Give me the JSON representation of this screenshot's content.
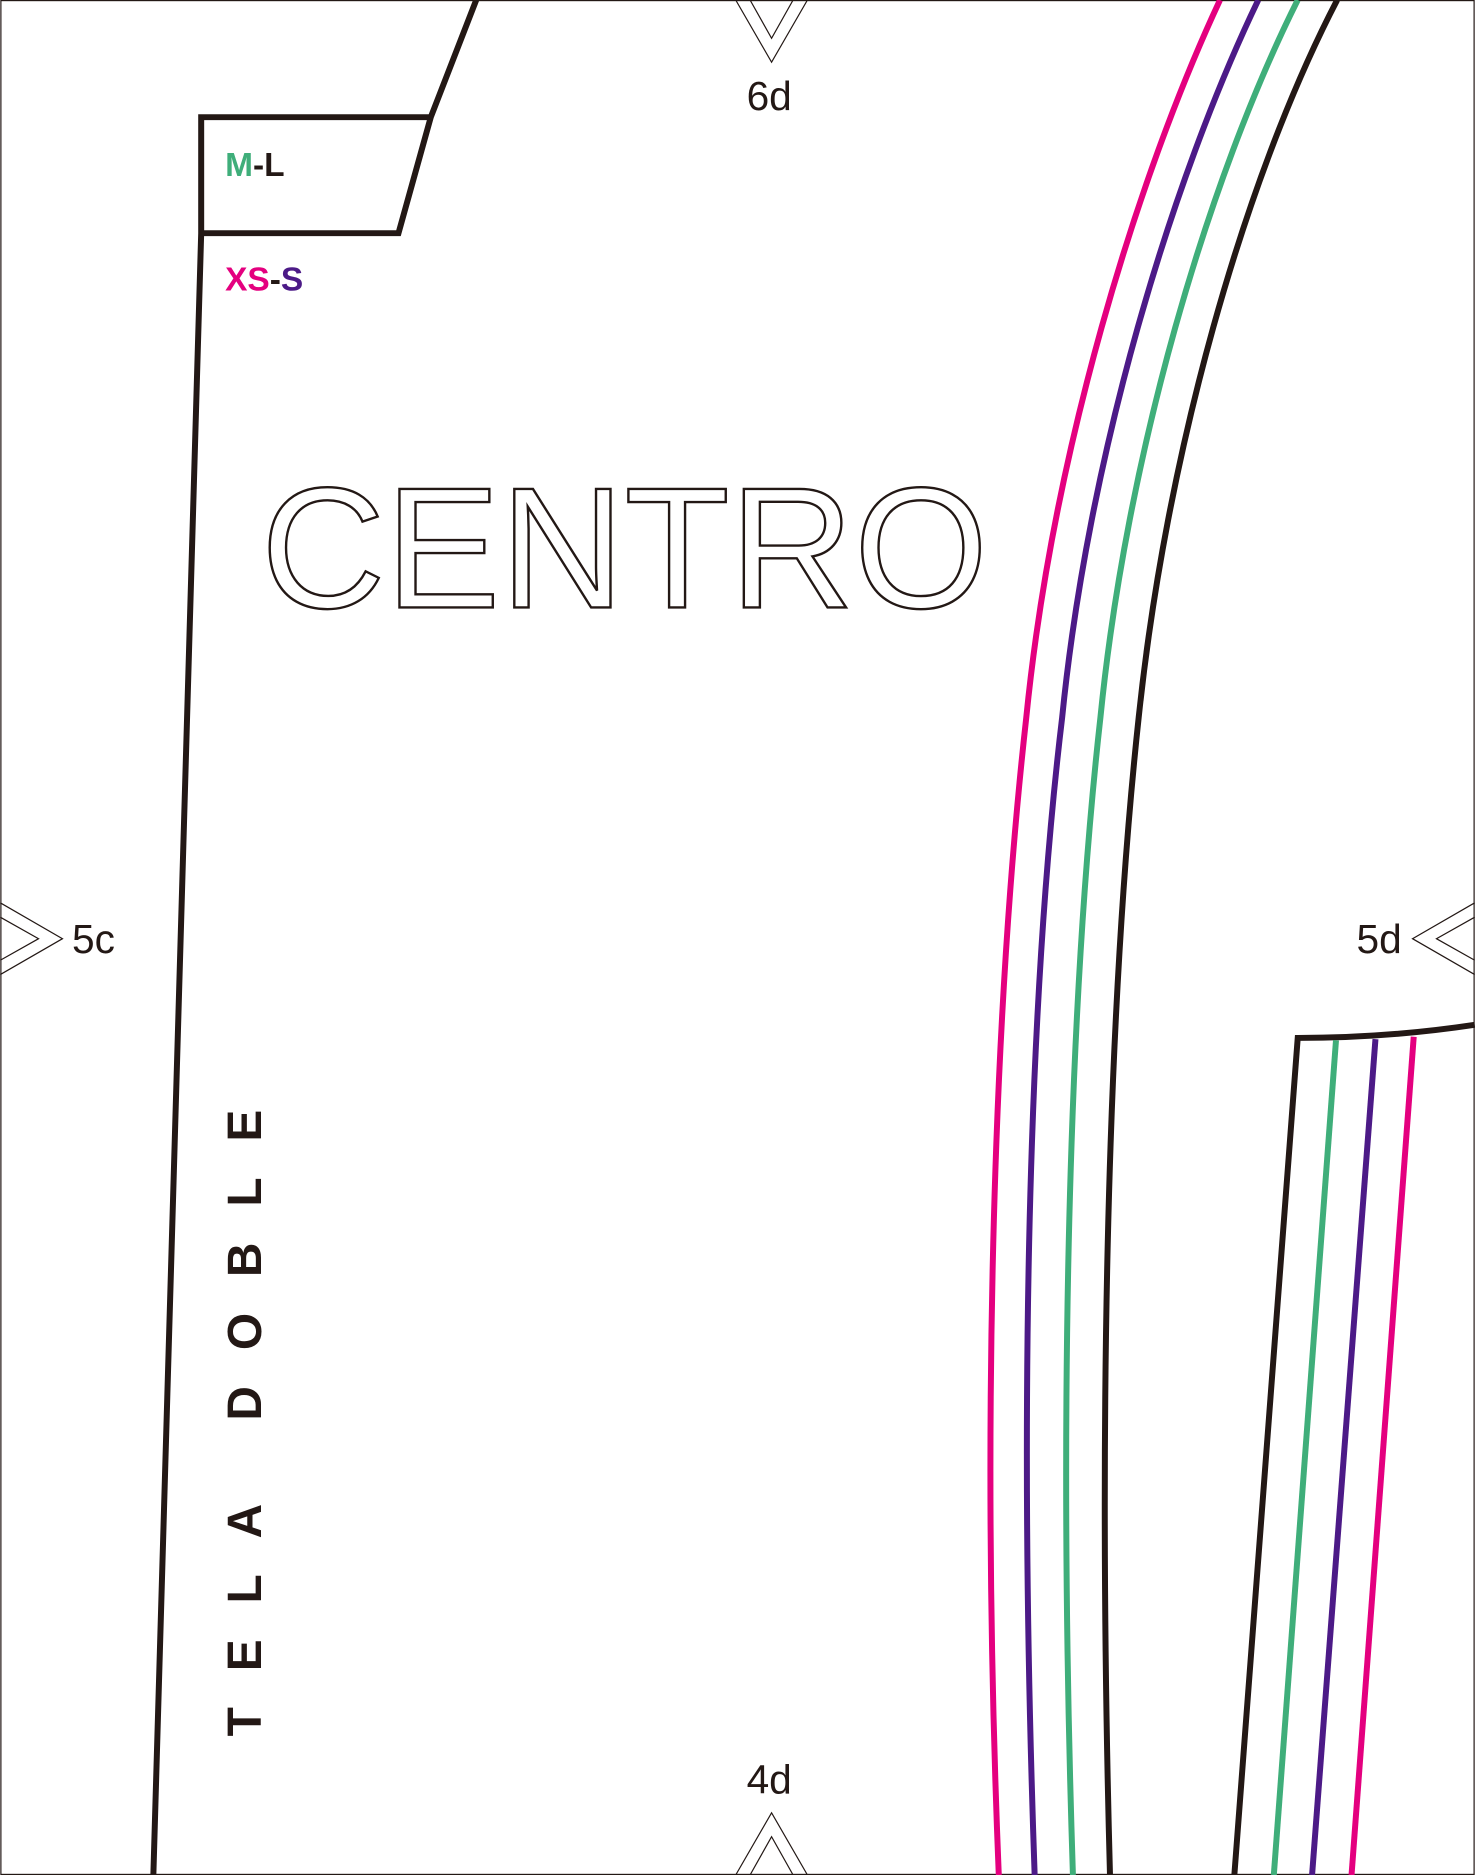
{
  "notch_labels": [
    "6d",
    "5c",
    "5d",
    "4d"
  ],
  "size_labels": [
    {
      "parts": [
        "M",
        "-L"
      ]
    },
    {
      "parts": [
        "XS",
        "-",
        "S"
      ]
    }
  ],
  "title": "CENTRO",
  "fold_label": "TELA DOBLE"
}
